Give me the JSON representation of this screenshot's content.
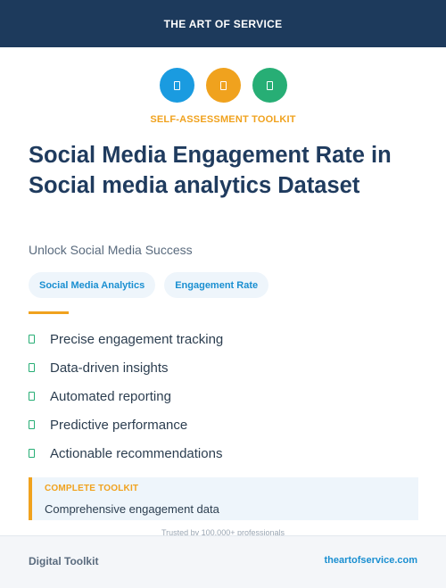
{
  "header": {
    "brand": "THE ART OF SERVICE",
    "background_color": "#1d3a5c"
  },
  "icons": [
    {
      "name": "document-icon",
      "color": "#1a9be0"
    },
    {
      "name": "clipboard-icon",
      "color": "#f0a21e"
    },
    {
      "name": "checklist-icon",
      "color": "#27ae75"
    }
  ],
  "eyebrow": {
    "text": "SELF-ASSESSMENT TOOLKIT",
    "color": "#f0a21e"
  },
  "title": "Social Media Engagement Rate in Social media analytics Dataset",
  "subtitle": "Unlock Social Media Success",
  "tags": [
    {
      "label": "Social Media Analytics"
    },
    {
      "label": "Engagement Rate"
    }
  ],
  "features": [
    {
      "text": "Precise engagement tracking"
    },
    {
      "text": "Data-driven insights"
    },
    {
      "text": "Automated reporting"
    },
    {
      "text": "Predictive performance"
    },
    {
      "text": "Actionable recommendations"
    }
  ],
  "callout": {
    "label": "COMPLETE TOOLKIT",
    "text": "Comprehensive engagement data"
  },
  "trusted_text": "Trusted by 100,000+ professionals",
  "footer": {
    "left": "Digital Toolkit",
    "right": "theartofservice.com"
  }
}
